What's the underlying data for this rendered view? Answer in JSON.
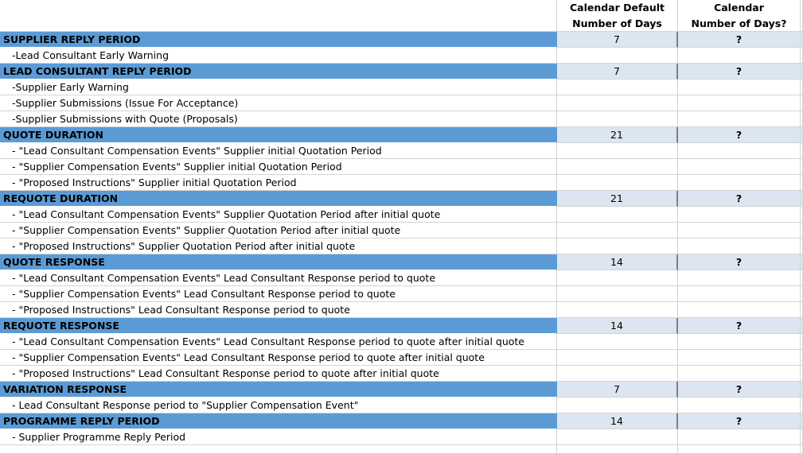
{
  "header": {
    "default_days": [
      "Calendar Default",
      "Number of Days"
    ],
    "calendar_days": [
      "Calendar",
      "Number of Days?"
    ]
  },
  "rows": [
    {
      "type": "section",
      "label": "SUPPLIER REPLY PERIOD",
      "default": "7",
      "calendar": "?"
    },
    {
      "type": "item",
      "label": "-Lead Consultant Early Warning"
    },
    {
      "type": "section",
      "label": "LEAD CONSULTANT REPLY PERIOD",
      "default": "7",
      "calendar": "?"
    },
    {
      "type": "item",
      "label": "-Supplier Early Warning"
    },
    {
      "type": "item",
      "label": "-Supplier Submissions (Issue For Acceptance)"
    },
    {
      "type": "item",
      "label": "-Supplier Submissions with Quote (Proposals)"
    },
    {
      "type": "section",
      "label": "QUOTE DURATION",
      "default": "21",
      "calendar": "?"
    },
    {
      "type": "item",
      "label": "- \"Lead Consultant Compensation Events\" Supplier initial Quotation Period"
    },
    {
      "type": "item",
      "label": "- \"Supplier Compensation Events\" Supplier initial Quotation Period"
    },
    {
      "type": "item",
      "label": "- \"Proposed Instructions\" Supplier initial Quotation Period"
    },
    {
      "type": "section",
      "label": "REQUOTE DURATION",
      "default": "21",
      "calendar": "?"
    },
    {
      "type": "item",
      "label": "- \"Lead Consultant Compensation Events\" Supplier Quotation Period after initial quote"
    },
    {
      "type": "item",
      "label": "- \"Supplier Compensation Events\" Supplier Quotation Period after initial quote"
    },
    {
      "type": "item",
      "label": "- \"Proposed Instructions\" Supplier Quotation Period after initial quote"
    },
    {
      "type": "section",
      "label": "QUOTE RESPONSE",
      "default": "14",
      "calendar": "?"
    },
    {
      "type": "item",
      "label": "- \"Lead Consultant Compensation Events\" Lead Consultant Response period to quote"
    },
    {
      "type": "item",
      "label": "- \"Supplier Compensation Events\" Lead Consultant Response period to quote"
    },
    {
      "type": "item",
      "label": "- \"Proposed Instructions\" Lead Consultant Response period to quote"
    },
    {
      "type": "section",
      "label": "REQUOTE RESPONSE",
      "default": "14",
      "calendar": "?"
    },
    {
      "type": "item",
      "label": "- \"Lead Consultant Compensation Events\" Lead Consultant Response period to quote after initial quote"
    },
    {
      "type": "item",
      "label": "- \"Supplier Compensation Events\" Lead Consultant Response period to quote after initial quote"
    },
    {
      "type": "item",
      "label": "- \"Proposed Instructions\" Lead Consultant Response period to quote after initial quote"
    },
    {
      "type": "section",
      "label": "VARIATION RESPONSE",
      "default": "7",
      "calendar": "?"
    },
    {
      "type": "item",
      "label": "- Lead Consultant Response period to \"Supplier Compensation Event\""
    },
    {
      "type": "section",
      "label": "PROGRAMME REPLY PERIOD",
      "default": "14",
      "calendar": "?"
    },
    {
      "type": "item",
      "label": "- Supplier Programme Reply Period"
    }
  ],
  "colors": {
    "section_fill": "#5b9bd5",
    "value_fill": "#dce6f1",
    "gridline": "#d4d4d4"
  }
}
